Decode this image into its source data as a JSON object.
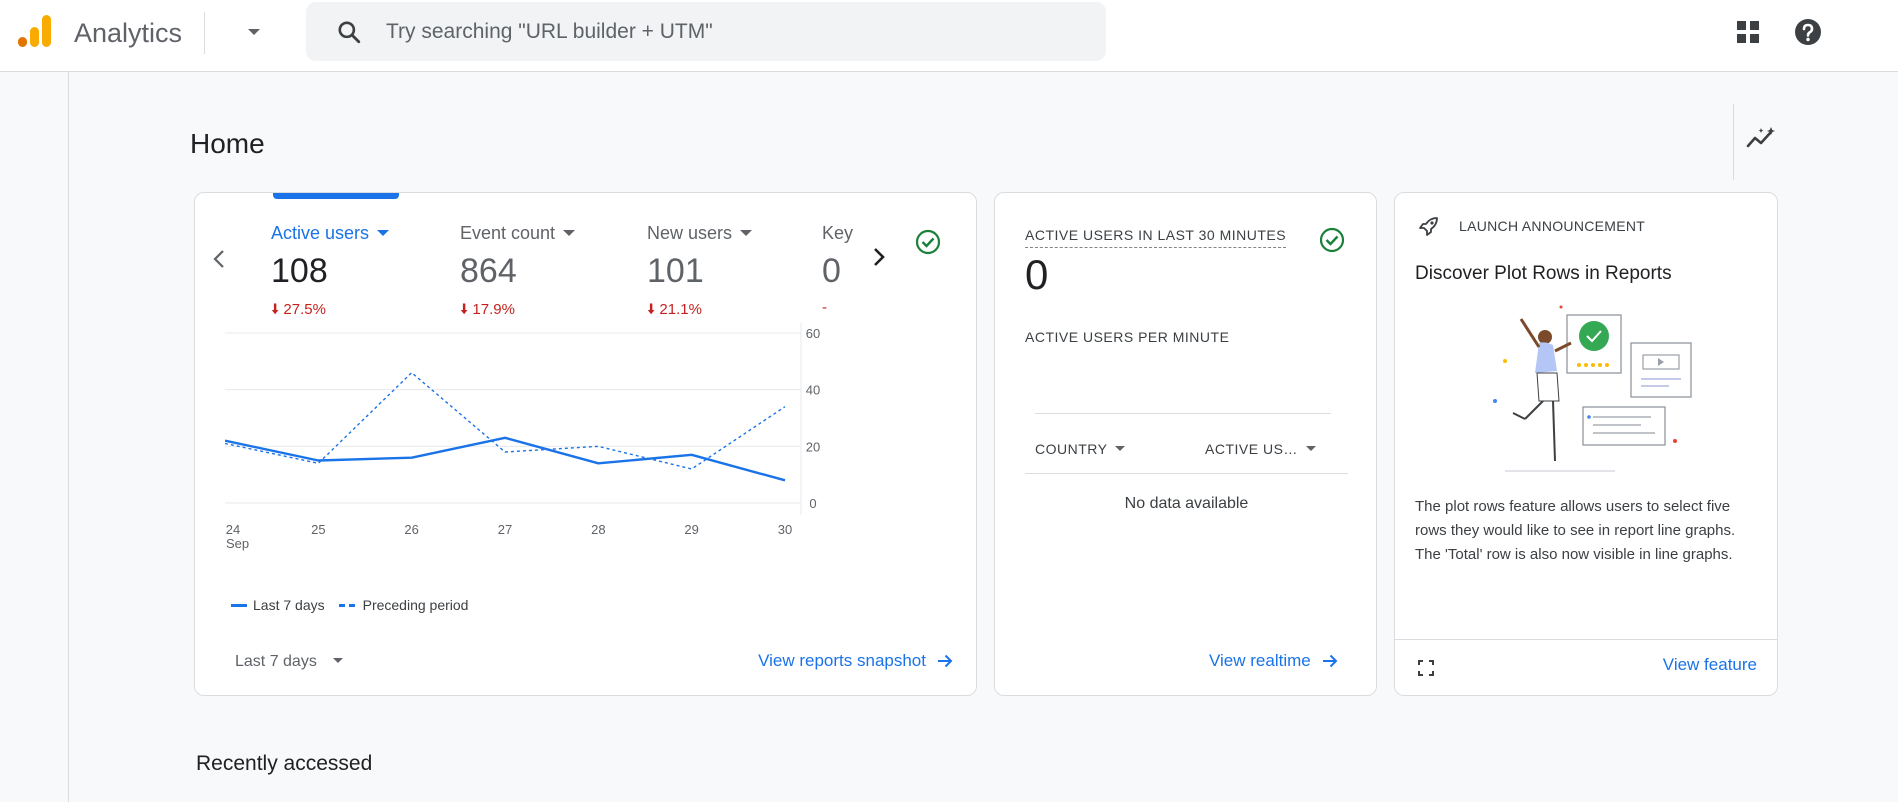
{
  "header": {
    "app_name": "Analytics",
    "search_placeholder": "Try searching \"URL builder + UTM\""
  },
  "page": {
    "title": "Home",
    "recently_accessed": "Recently accessed"
  },
  "overview_card": {
    "metrics": [
      {
        "label": "Active users",
        "value": "108",
        "change": "27.5%",
        "direction": "down",
        "active": true
      },
      {
        "label": "Event count",
        "value": "864",
        "change": "17.9%",
        "direction": "down"
      },
      {
        "label": "New users",
        "value": "101",
        "change": "21.1%",
        "direction": "down"
      },
      {
        "label": "Key",
        "value": "0",
        "change": "-"
      }
    ],
    "legend": {
      "current": "Last 7 days",
      "previous": "Preceding period"
    },
    "period_select": "Last 7 days",
    "link": "View reports snapshot"
  },
  "chart_data": {
    "type": "line",
    "x": [
      "24",
      "25",
      "26",
      "27",
      "28",
      "29",
      "30"
    ],
    "x_sub_label": "Sep",
    "series": [
      {
        "name": "Last 7 days",
        "style": "solid",
        "values": [
          22,
          15,
          16,
          23,
          14,
          17,
          8
        ]
      },
      {
        "name": "Preceding period",
        "style": "dashed",
        "values": [
          21,
          14,
          46,
          18,
          20,
          12,
          34
        ]
      }
    ],
    "y_ticks": [
      0,
      20,
      40,
      60
    ],
    "ylim": [
      0,
      60
    ],
    "y_axis_position": "right",
    "grid": true,
    "legend_position": "bottom-left"
  },
  "realtime_card": {
    "title": "ACTIVE USERS IN LAST 30 MINUTES",
    "value": "0",
    "per_minute_label": "ACTIVE USERS PER MINUTE",
    "col_country": "COUNTRY",
    "col_active": "ACTIVE US…",
    "empty": "No data available",
    "link": "View realtime"
  },
  "announcement_card": {
    "eyebrow": "LAUNCH ANNOUNCEMENT",
    "title": "Discover Plot Rows in Reports",
    "body": "The plot rows feature allows users to select five rows they would like to see in report line graphs. The 'Total' row is also now visible in line graphs.",
    "link": "View feature"
  },
  "colors": {
    "accent": "#1a73e8",
    "negative": "#c5221f",
    "success": "#188038",
    "logo_orange": "#f9ab00",
    "logo_dark": "#e37400"
  }
}
